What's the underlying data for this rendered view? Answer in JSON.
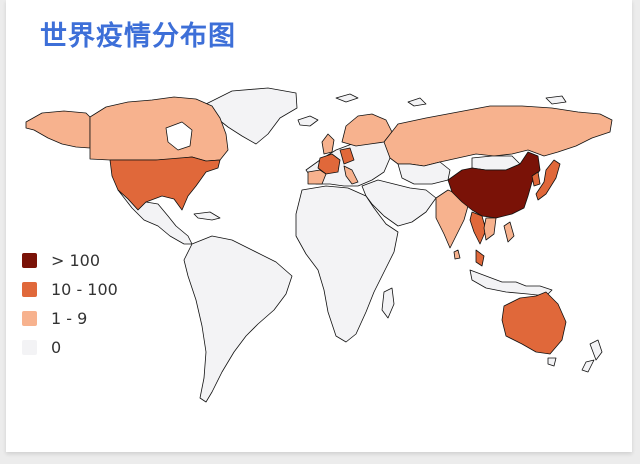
{
  "title": "世界疫情分布图",
  "colors": {
    "gt100": "#7a1207",
    "r10_100": "#e0683a",
    "r1_9": "#f7b28e",
    "zero": "#f3f3f5",
    "border": "#111111"
  },
  "legend": [
    {
      "label": "> 100",
      "color": "#7a1207"
    },
    {
      "label": "10 - 100",
      "color": "#e0683a"
    },
    {
      "label": "1 - 9",
      "color": "#f7b28e"
    },
    {
      "label": "0",
      "color": "#f3f3f5"
    }
  ]
}
